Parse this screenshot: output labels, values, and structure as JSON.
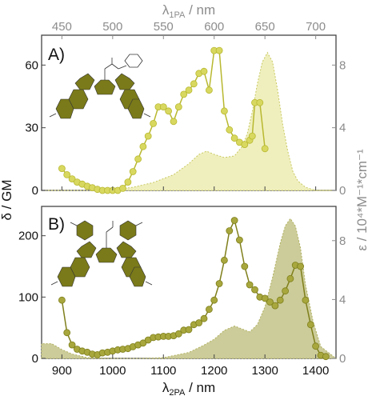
{
  "colors": {
    "panel_a_line": "#b8b830",
    "panel_a_marker": "#d8d860",
    "panel_a_fill": "#efefbe",
    "panel_a_fill_stroke": "#c8c860",
    "panel_b_line": "#7f7f1c",
    "panel_b_marker": "#a7a73e",
    "panel_b_fill": "#cccc9a",
    "panel_b_fill_stroke": "#b0b060",
    "molecule": "#7a7a1a",
    "frame": "#444444",
    "gray_axis": "#8c8c8c"
  },
  "axes": {
    "top_label_main": "λ",
    "top_label_sub": "1PA",
    "top_label_tail": " / nm",
    "bottom_label_main": "λ",
    "bottom_label_sub": "2PA",
    "bottom_label_tail": " / nm",
    "left_label": "δ / GM",
    "right_label": "ε / 10⁴*M⁻¹*cm⁻¹"
  },
  "chart_data": [
    {
      "type": "line",
      "panel_label": "A)",
      "title": "",
      "xlabel": "λ2PA / nm",
      "ylabel": "δ / GM",
      "xlim": [
        860,
        1440
      ],
      "ylim": [
        0,
        72
      ],
      "x_ticks": [
        900,
        1000,
        1100,
        1200,
        1300,
        1400
      ],
      "y_ticks": [
        0,
        30,
        60
      ],
      "top_axis": {
        "label": "λ1PA / nm",
        "ticks": [
          450,
          500,
          550,
          600,
          650,
          700
        ],
        "relation": "x_top = x_bottom / 2"
      },
      "right_axis": {
        "label": "ε / 10⁴*M⁻¹*cm⁻¹",
        "ticks": [
          0,
          4,
          8
        ],
        "ylim": [
          0,
          9.6
        ]
      },
      "grid": false,
      "series": [
        {
          "kind": "2PA-markers-line",
          "x": [
            900,
            910,
            920,
            930,
            940,
            950,
            960,
            970,
            980,
            990,
            1000,
            1010,
            1020,
            1030,
            1040,
            1050,
            1060,
            1070,
            1080,
            1090,
            1100,
            1110,
            1120,
            1130,
            1140,
            1150,
            1160,
            1170,
            1180,
            1190,
            1200,
            1210,
            1220,
            1230,
            1240,
            1250,
            1260,
            1270,
            1275,
            1280,
            1290,
            1300
          ],
          "y": [
            10.5,
            7.5,
            5.5,
            4,
            3,
            2,
            1.3,
            0.5,
            0,
            0,
            0,
            0,
            1,
            4,
            9,
            15,
            21,
            26,
            32,
            40,
            40,
            38,
            33,
            40,
            46,
            48,
            51,
            56,
            57,
            48,
            67,
            67,
            38,
            29,
            25,
            23,
            22,
            24,
            26,
            42,
            42,
            20
          ]
        },
        {
          "kind": "1PA-absorption-fill",
          "axis": "right",
          "x": [
            860,
            900,
            960,
            1000,
            1040,
            1080,
            1120,
            1150,
            1170,
            1185,
            1200,
            1220,
            1240,
            1255,
            1265,
            1275,
            1285,
            1295,
            1305,
            1315,
            1325,
            1335,
            1345,
            1355,
            1365,
            1380,
            1400,
            1440
          ],
          "y": [
            0,
            0,
            0,
            0.05,
            0.2,
            0.5,
            1.0,
            1.7,
            2.3,
            2.5,
            2.3,
            2.1,
            2.2,
            2.8,
            3.6,
            5.0,
            6.8,
            8.2,
            8.8,
            8.2,
            6.4,
            4.2,
            2.5,
            1.2,
            0.6,
            0.2,
            0,
            0
          ]
        }
      ]
    },
    {
      "type": "line",
      "panel_label": "B)",
      "title": "",
      "xlabel": "λ2PA / nm",
      "ylabel": "δ / GM",
      "xlim": [
        860,
        1440
      ],
      "ylim": [
        0,
        240
      ],
      "x_ticks": [
        900,
        1000,
        1100,
        1200,
        1300,
        1400
      ],
      "y_ticks": [
        0,
        100,
        200
      ],
      "right_axis": {
        "label": "ε / 10⁴*M⁻¹*cm⁻¹",
        "ticks": [
          0,
          4,
          8
        ],
        "ylim": [
          0,
          10
        ]
      },
      "grid": false,
      "series": [
        {
          "kind": "2PA-markers-line",
          "x": [
            900,
            910,
            920,
            930,
            940,
            950,
            960,
            970,
            980,
            990,
            1000,
            1010,
            1020,
            1030,
            1040,
            1050,
            1060,
            1070,
            1080,
            1090,
            1100,
            1110,
            1120,
            1130,
            1140,
            1150,
            1160,
            1170,
            1180,
            1190,
            1200,
            1210,
            1220,
            1230,
            1240,
            1250,
            1260,
            1270,
            1280,
            1290,
            1300,
            1310,
            1320,
            1330,
            1340,
            1350,
            1360,
            1370,
            1380,
            1390,
            1400,
            1410,
            1420
          ],
          "y": [
            95,
            42,
            22,
            15,
            12,
            10,
            7,
            6,
            9,
            10,
            12,
            14,
            15,
            16,
            19,
            22,
            25,
            30,
            34,
            35,
            36,
            36,
            37,
            40,
            46,
            47,
            55,
            58,
            65,
            80,
            95,
            122,
            160,
            208,
            225,
            193,
            150,
            120,
            112,
            100,
            98,
            92,
            86,
            95,
            110,
            130,
            152,
            150,
            95,
            55,
            20,
            5,
            3
          ]
        },
        {
          "kind": "1PA-absorption-fill",
          "axis": "right",
          "x": [
            860,
            880,
            900,
            920,
            950,
            1000,
            1050,
            1100,
            1150,
            1180,
            1200,
            1220,
            1240,
            1255,
            1270,
            1285,
            1300,
            1315,
            1330,
            1340,
            1350,
            1360,
            1370,
            1380,
            1395,
            1410,
            1440
          ],
          "y": [
            1.0,
            1.0,
            0.6,
            0.3,
            0.05,
            0,
            0,
            0.05,
            0.4,
            0.9,
            1.3,
            1.9,
            2.2,
            2.0,
            1.8,
            2.3,
            3.5,
            5.5,
            7.8,
            9.0,
            9.5,
            9.0,
            7.5,
            5.0,
            2.5,
            0.8,
            0
          ]
        }
      ]
    }
  ]
}
